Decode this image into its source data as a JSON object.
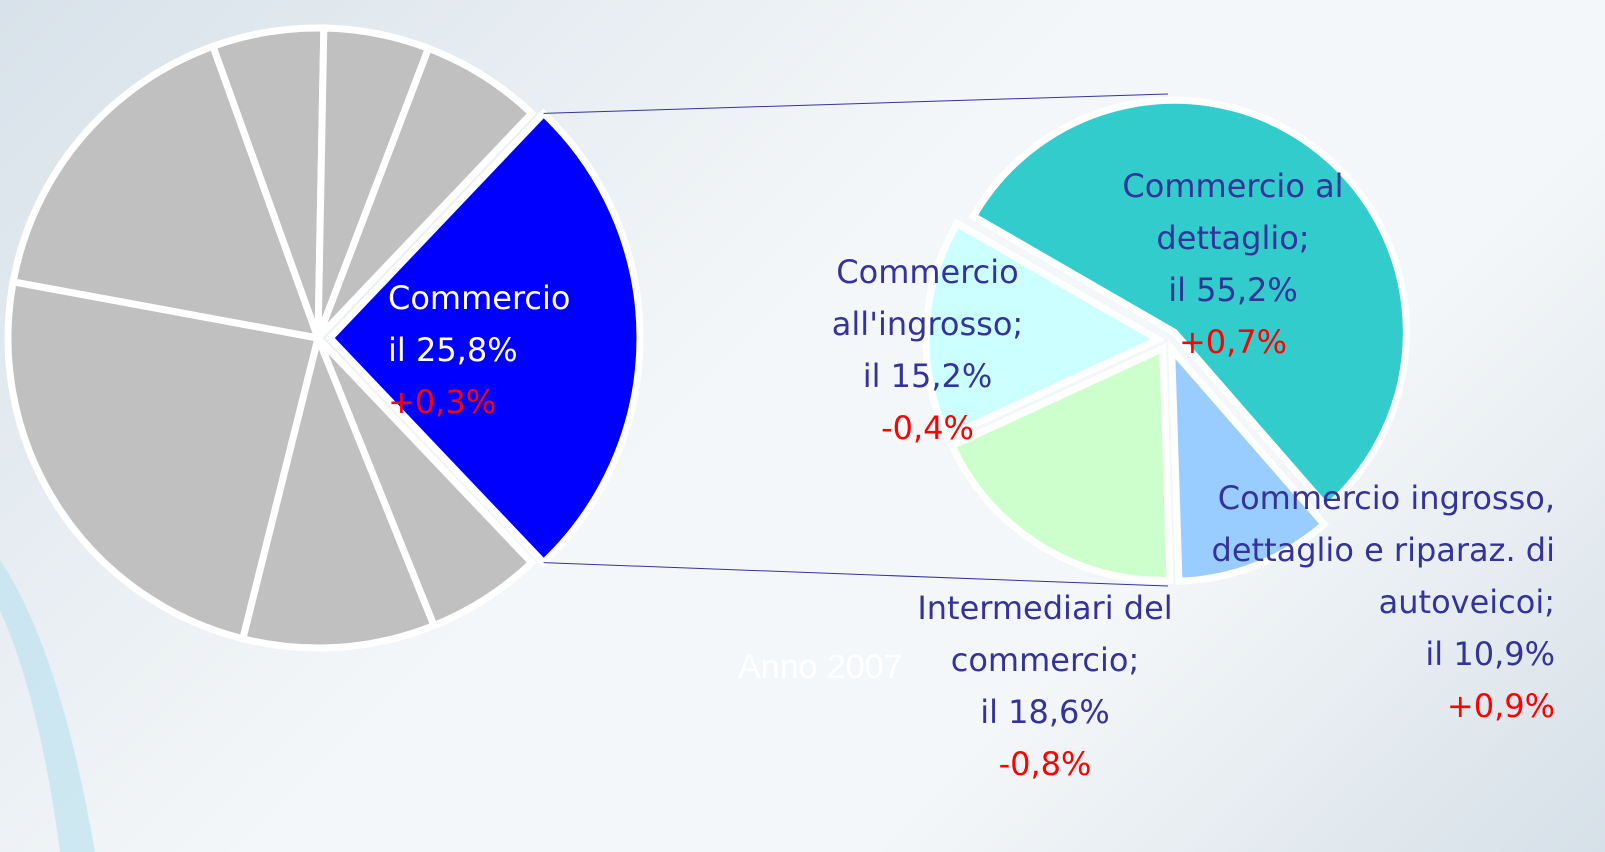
{
  "chart_data": [
    {
      "type": "pie",
      "categories": [
        "Commercio",
        null,
        null,
        null,
        null,
        null,
        null,
        null
      ],
      "values": [
        25.8,
        6,
        10,
        24,
        16.6,
        5.8,
        5.5,
        6.3
      ],
      "value_labels": [
        "il 25,8%",
        null,
        null,
        null,
        null,
        null,
        null,
        null
      ],
      "changes": [
        0.3,
        null,
        null,
        null,
        null,
        null,
        null,
        null
      ],
      "change_labels": [
        "+0,3%",
        null,
        null,
        null,
        null,
        null,
        null,
        null
      ],
      "colors": [
        "#0000ff",
        "#c0c0c0",
        "#c0c0c0",
        "#c0c0c0",
        "#c0c0c0",
        "#c0c0c0",
        "#c0c0c0",
        "#c0c0c0"
      ]
    },
    {
      "type": "pie",
      "categories": [
        "Commercio al dettaglio;",
        "Commercio ingrosso, dettaglio e riparaz. di autoveicoi;",
        "Intermediari del commercio;",
        "Commercio all'ingrosso;"
      ],
      "values": [
        55.2,
        10.9,
        18.6,
        15.2
      ],
      "value_labels": [
        "il 55,2%",
        "il 10,9%",
        "il 18,6%",
        "il 15,2%"
      ],
      "changes": [
        0.7,
        0.9,
        -0.8,
        -0.4
      ],
      "change_labels": [
        "+0,7%",
        "+0,9%",
        "-0,8%",
        "-0,4%"
      ],
      "colors": [
        "#33cccc",
        "#99ccff",
        "#ccffcc",
        "#ccffff"
      ]
    }
  ],
  "annotation": "Anno 2007"
}
